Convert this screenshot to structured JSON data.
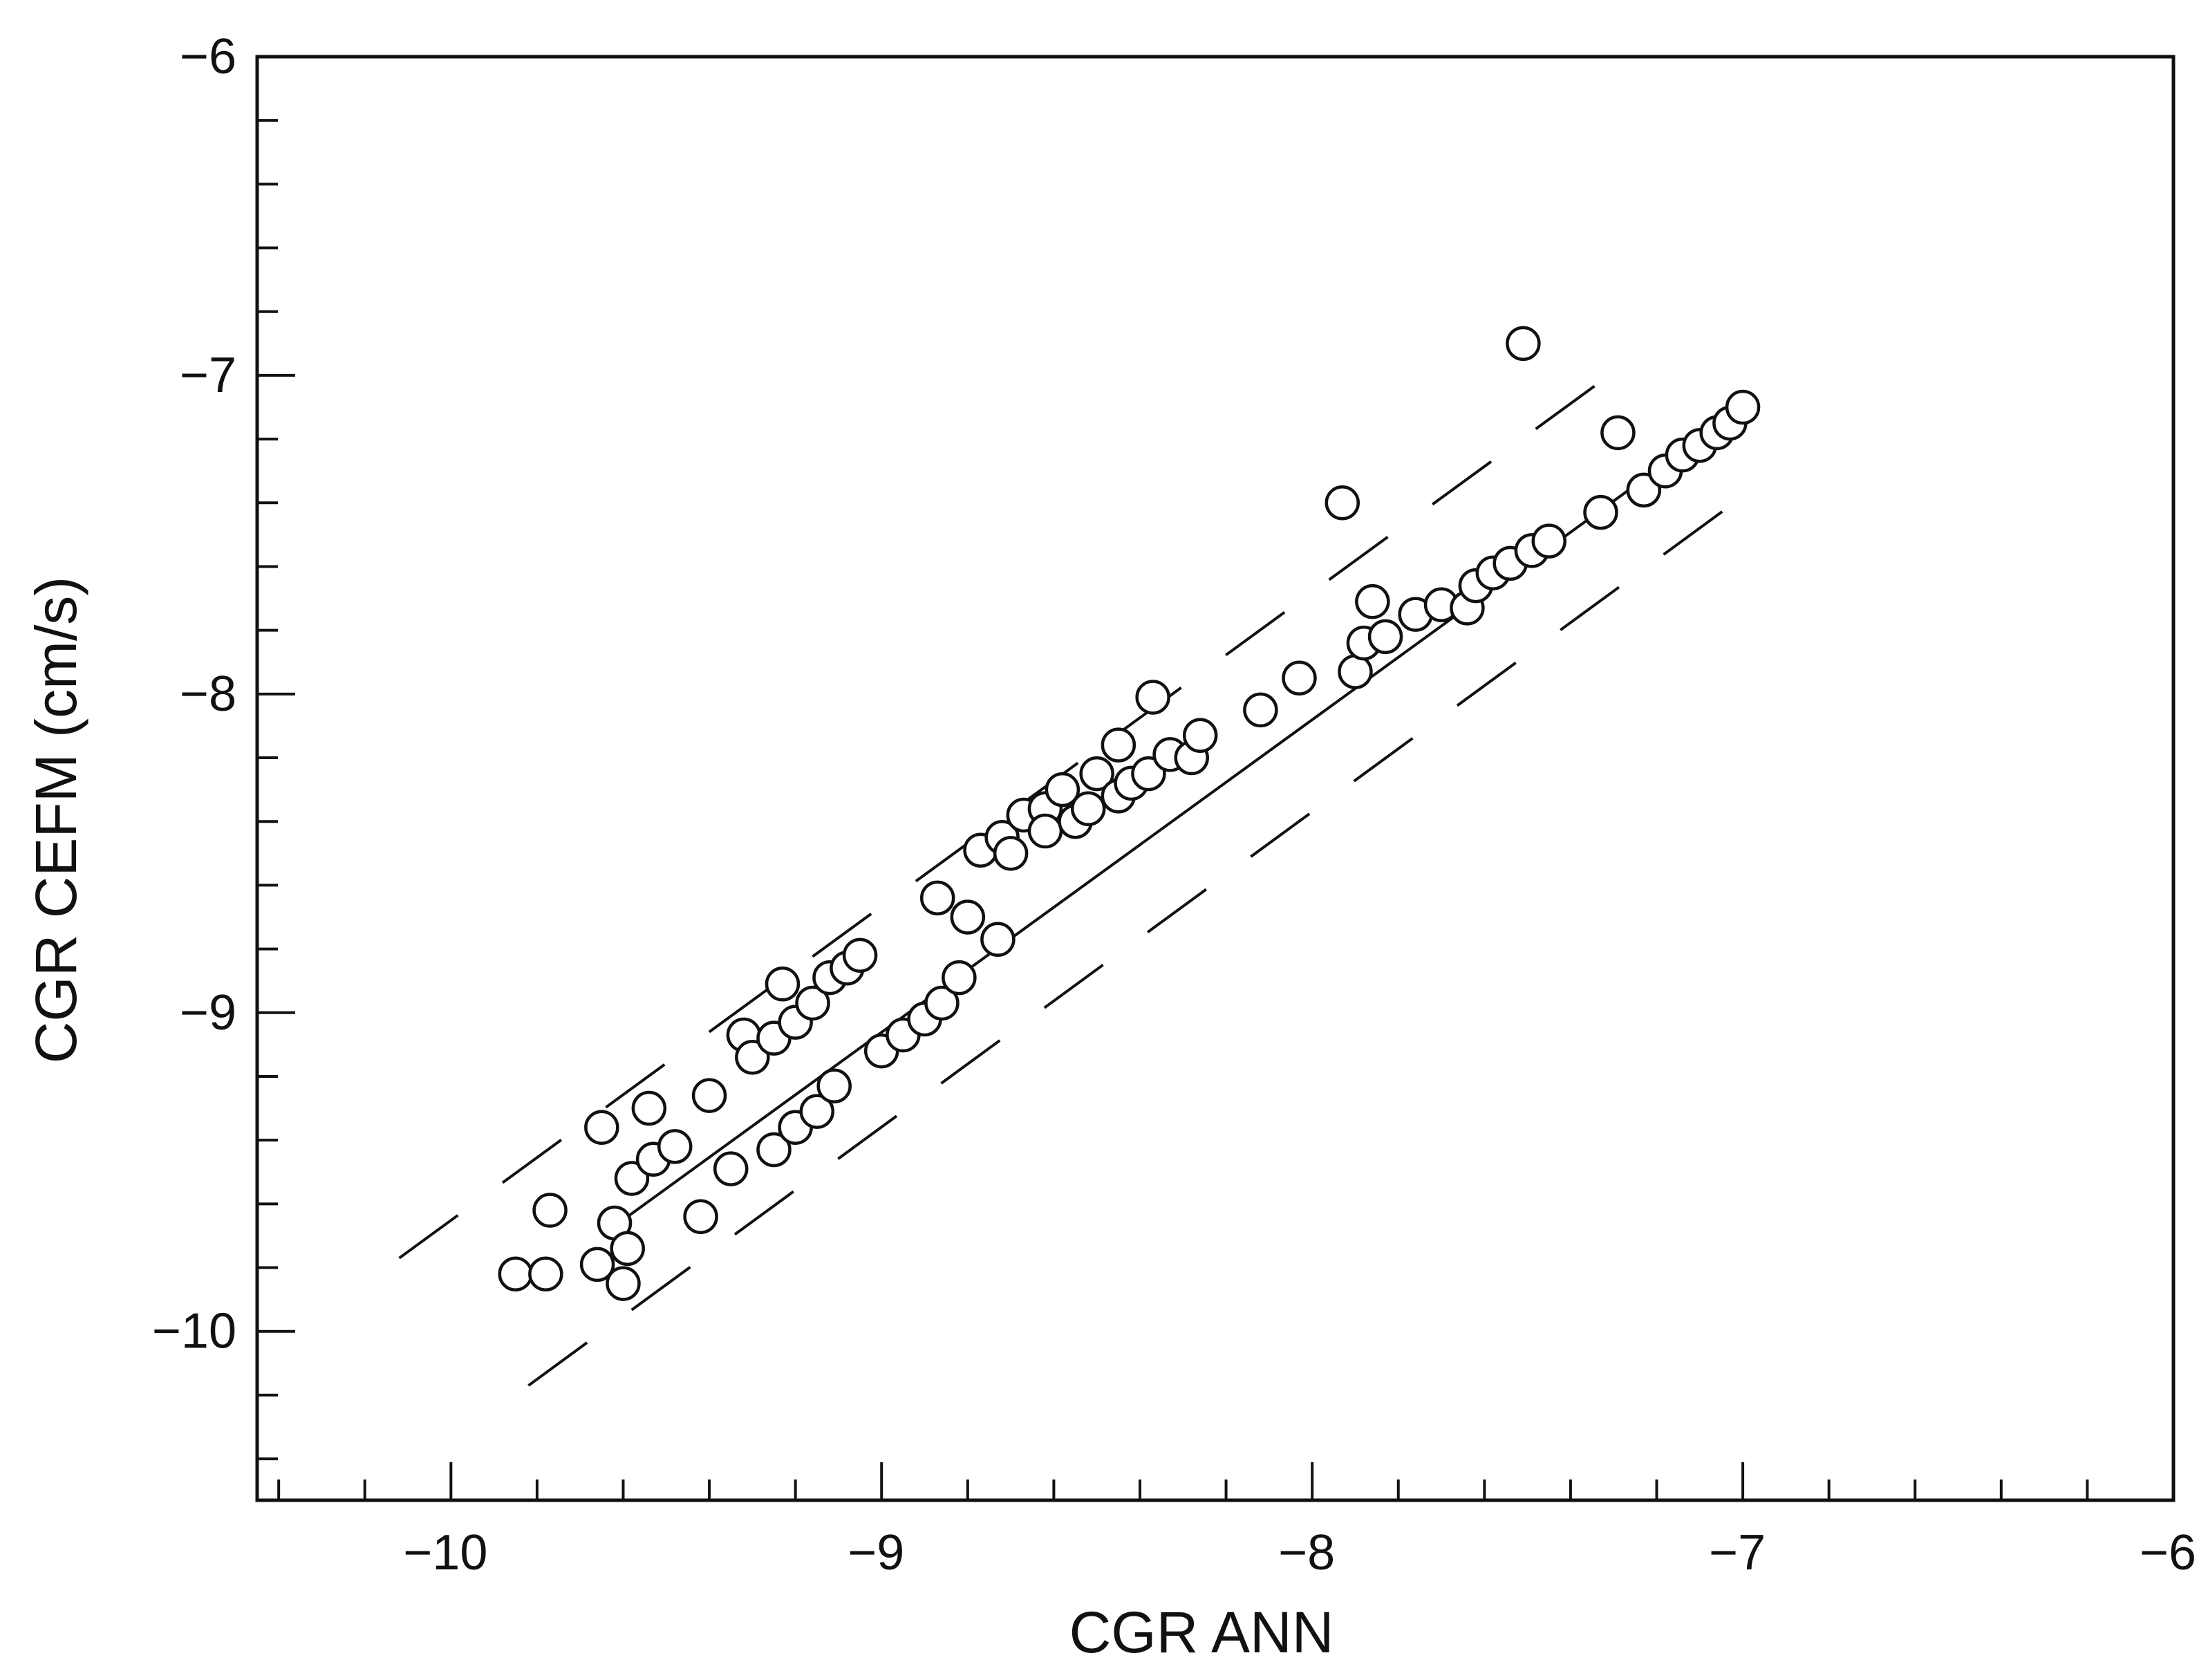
{
  "chart_data": {
    "type": "scatter",
    "title": "",
    "xlabel": "CGR ANN",
    "ylabel": "CGR CEFM (cm/s)",
    "xlim": [
      -10.45,
      -6
    ],
    "ylim": [
      -10.53,
      -6
    ],
    "x_ticks": [
      -10,
      -9,
      -8,
      -7,
      -6
    ],
    "y_ticks": [
      -6,
      -7,
      -8,
      -9,
      -10
    ],
    "x_tick_labels": [
      "−10",
      "−9",
      "−8",
      "−7",
      "−6"
    ],
    "y_tick_labels": [
      "−6",
      "−7",
      "−8",
      "−9",
      "−10"
    ],
    "x_minor_step": 0.2,
    "y_minor_step": 0.2,
    "grid": false,
    "legend": "none",
    "marker": "open-circle",
    "reference_line": {
      "style": "solid",
      "from": [
        -9.6,
        -9.65
      ],
      "to": [
        -7.0,
        -7.1
      ]
    },
    "bound_lines": [
      {
        "style": "dashed",
        "from": [
          -10.12,
          -9.77
        ],
        "to": [
          -7.3,
          -6.99
        ]
      },
      {
        "style": "dashed",
        "from": [
          -9.82,
          -10.17
        ],
        "to": [
          -7.02,
          -7.4
        ]
      }
    ],
    "points": [
      {
        "x": -9.85,
        "y": -9.82
      },
      {
        "x": -9.78,
        "y": -9.82
      },
      {
        "x": -9.77,
        "y": -9.62
      },
      {
        "x": -9.66,
        "y": -9.79
      },
      {
        "x": -9.62,
        "y": -9.66
      },
      {
        "x": -9.6,
        "y": -9.85
      },
      {
        "x": -9.59,
        "y": -9.74
      },
      {
        "x": -9.65,
        "y": -9.36
      },
      {
        "x": -9.58,
        "y": -9.52
      },
      {
        "x": -9.53,
        "y": -9.46
      },
      {
        "x": -9.54,
        "y": -9.3
      },
      {
        "x": -9.48,
        "y": -9.42
      },
      {
        "x": -9.42,
        "y": -9.64
      },
      {
        "x": -9.4,
        "y": -9.26
      },
      {
        "x": -9.35,
        "y": -9.49
      },
      {
        "x": -9.32,
        "y": -9.07
      },
      {
        "x": -9.3,
        "y": -9.14
      },
      {
        "x": -9.25,
        "y": -9.43
      },
      {
        "x": -9.25,
        "y": -9.08
      },
      {
        "x": -9.2,
        "y": -9.03
      },
      {
        "x": -9.2,
        "y": -9.36
      },
      {
        "x": -9.23,
        "y": -8.91
      },
      {
        "x": -9.16,
        "y": -8.97
      },
      {
        "x": -9.15,
        "y": -9.31
      },
      {
        "x": -9.12,
        "y": -8.89
      },
      {
        "x": -9.11,
        "y": -9.23
      },
      {
        "x": -9.08,
        "y": -8.86
      },
      {
        "x": -9.05,
        "y": -8.82
      },
      {
        "x": -9.0,
        "y": -9.12
      },
      {
        "x": -8.95,
        "y": -9.07
      },
      {
        "x": -8.9,
        "y": -9.02
      },
      {
        "x": -8.87,
        "y": -8.64
      },
      {
        "x": -8.86,
        "y": -8.97
      },
      {
        "x": -8.82,
        "y": -8.89
      },
      {
        "x": -8.8,
        "y": -8.7
      },
      {
        "x": -8.77,
        "y": -8.49
      },
      {
        "x": -8.73,
        "y": -8.77
      },
      {
        "x": -8.72,
        "y": -8.45
      },
      {
        "x": -8.7,
        "y": -8.5
      },
      {
        "x": -8.67,
        "y": -8.38
      },
      {
        "x": -8.62,
        "y": -8.36
      },
      {
        "x": -8.62,
        "y": -8.43
      },
      {
        "x": -8.58,
        "y": -8.3
      },
      {
        "x": -8.55,
        "y": -8.4
      },
      {
        "x": -8.52,
        "y": -8.36
      },
      {
        "x": -8.5,
        "y": -8.25
      },
      {
        "x": -8.45,
        "y": -8.16
      },
      {
        "x": -8.45,
        "y": -8.32
      },
      {
        "x": -8.42,
        "y": -8.28
      },
      {
        "x": -8.38,
        "y": -8.25
      },
      {
        "x": -8.37,
        "y": -8.01
      },
      {
        "x": -8.33,
        "y": -8.19
      },
      {
        "x": -8.28,
        "y": -8.2
      },
      {
        "x": -8.26,
        "y": -8.13
      },
      {
        "x": -8.12,
        "y": -8.05
      },
      {
        "x": -8.03,
        "y": -7.95
      },
      {
        "x": -7.93,
        "y": -7.4
      },
      {
        "x": -7.9,
        "y": -7.93
      },
      {
        "x": -7.88,
        "y": -7.84
      },
      {
        "x": -7.86,
        "y": -7.71
      },
      {
        "x": -7.83,
        "y": -7.82
      },
      {
        "x": -7.76,
        "y": -7.75
      },
      {
        "x": -7.7,
        "y": -7.72
      },
      {
        "x": -7.64,
        "y": -7.73
      },
      {
        "x": -7.62,
        "y": -7.66
      },
      {
        "x": -7.58,
        "y": -7.62
      },
      {
        "x": -7.54,
        "y": -7.59
      },
      {
        "x": -7.51,
        "y": -6.9
      },
      {
        "x": -7.49,
        "y": -7.55
      },
      {
        "x": -7.45,
        "y": -7.52
      },
      {
        "x": -7.33,
        "y": -7.43
      },
      {
        "x": -7.29,
        "y": -7.18
      },
      {
        "x": -7.23,
        "y": -7.36
      },
      {
        "x": -7.18,
        "y": -7.3
      },
      {
        "x": -7.14,
        "y": -7.25
      },
      {
        "x": -7.1,
        "y": -7.22
      },
      {
        "x": -7.06,
        "y": -7.18
      },
      {
        "x": -7.03,
        "y": -7.15
      },
      {
        "x": -7.0,
        "y": -7.1
      }
    ]
  }
}
